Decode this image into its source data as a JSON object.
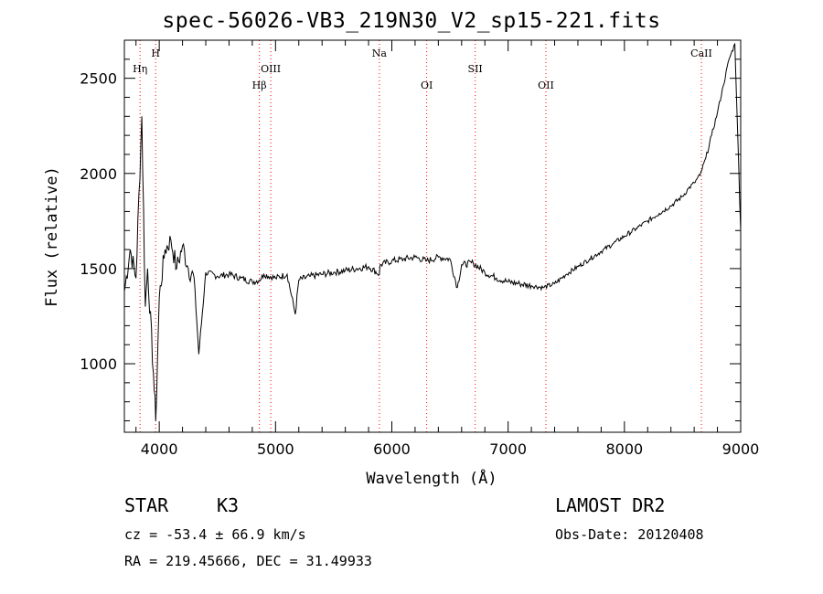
{
  "chart_data": {
    "type": "line",
    "title": "spec-56026-VB3_219N30_V2_sp15-221.fits",
    "xlabel": "Wavelength (Å)",
    "ylabel": "Flux (relative)",
    "xlim": [
      3700,
      9000
    ],
    "ylim": [
      640,
      2700
    ],
    "xticks": [
      4000,
      5000,
      6000,
      7000,
      8000,
      9000
    ],
    "yticks": [
      1000,
      1500,
      2000,
      2500
    ],
    "grid": false,
    "line_color": "#000000",
    "marker_color": "#ff0000",
    "lines": [
      {
        "label": "Hη",
        "x": 3835,
        "row": 2
      },
      {
        "label": "H",
        "x": 3969,
        "row": 1
      },
      {
        "label": "Hβ",
        "x": 4861,
        "row": 3
      },
      {
        "label": "OIII",
        "x": 4959,
        "row": 2
      },
      {
        "label": "Na",
        "x": 5893,
        "row": 1
      },
      {
        "label": "OI",
        "x": 6300,
        "row": 3
      },
      {
        "label": "SII",
        "x": 6717,
        "row": 2
      },
      {
        "label": "OII",
        "x": 7325,
        "row": 3
      },
      {
        "label": "CaII",
        "x": 8662,
        "row": 1
      }
    ],
    "series": [
      {
        "x": [
          3700,
          3750,
          3800,
          3850,
          3880,
          3900,
          3950,
          3970,
          4000,
          4050,
          4100,
          4150,
          4200,
          4250,
          4300,
          4340,
          4400,
          4500,
          4600,
          4700,
          4800,
          4861,
          4900,
          5000,
          5100,
          5170,
          5200,
          5300,
          5400,
          5500,
          5600,
          5700,
          5800,
          5893,
          5900,
          6000,
          6100,
          6200,
          6300,
          6400,
          6500,
          6563,
          6600,
          6700,
          6800,
          6900,
          7000,
          7100,
          7200,
          7300,
          7400,
          7500,
          7600,
          7700,
          7800,
          7900,
          8000,
          8100,
          8200,
          8300,
          8400,
          8500,
          8550,
          8600,
          8650,
          8700,
          8750,
          8800,
          8850,
          8900,
          8950,
          9000
        ],
        "y": [
          1380,
          1600,
          1450,
          2300,
          1300,
          1500,
          950,
          700,
          1350,
          1600,
          1650,
          1500,
          1620,
          1500,
          1450,
          1050,
          1480,
          1460,
          1470,
          1450,
          1430,
          1440,
          1470,
          1450,
          1470,
          1260,
          1440,
          1460,
          1470,
          1480,
          1490,
          1500,
          1510,
          1470,
          1520,
          1540,
          1550,
          1560,
          1540,
          1560,
          1550,
          1400,
          1520,
          1530,
          1480,
          1450,
          1430,
          1420,
          1410,
          1400,
          1420,
          1470,
          1510,
          1550,
          1590,
          1630,
          1670,
          1710,
          1750,
          1790,
          1830,
          1880,
          1920,
          1950,
          1990,
          2080,
          2200,
          2320,
          2460,
          2600,
          2680,
          1700
        ]
      }
    ]
  },
  "footer": {
    "object_class": "STAR",
    "subclass": "K3",
    "redshift": "cz = -53.4 ± 66.9 km/s",
    "coords": "RA = 219.45666, DEC =  31.49933",
    "survey": "LAMOST DR2",
    "obs_date": "Obs-Date: 20120408"
  }
}
